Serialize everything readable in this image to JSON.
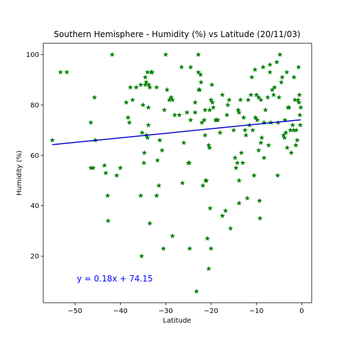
{
  "chart_data": {
    "type": "scatter",
    "title": "Southern Hemisphere - Humidity (%) vs Latitude (20/11/03)",
    "xlabel": "Latitude",
    "ylabel": "Humidity (%)",
    "xlim": [
      -57,
      2.2
    ],
    "ylim": [
      1.5,
      104.5
    ],
    "xticks": [
      -50,
      -40,
      -30,
      -20,
      -10,
      0
    ],
    "yticks": [
      20,
      40,
      60,
      80,
      100
    ],
    "grid": false,
    "marker": "star",
    "marker_color": "#008000",
    "regression": {
      "equation": "y = 0.18x + 74.15",
      "slope": 0.18,
      "intercept": 74.15,
      "x_range": [
        -55,
        -0.2
      ],
      "color": "#0000cc",
      "label_color": "#0000ff"
    },
    "points": [
      [
        -55,
        66
      ],
      [
        -53.2,
        93
      ],
      [
        -51.8,
        93
      ],
      [
        -46.5,
        73
      ],
      [
        -46.5,
        55
      ],
      [
        -46,
        55
      ],
      [
        -45.7,
        83
      ],
      [
        -45.5,
        66
      ],
      [
        -43.5,
        56
      ],
      [
        -43.2,
        53
      ],
      [
        -42.8,
        44
      ],
      [
        -42.7,
        34
      ],
      [
        -41.8,
        100
      ],
      [
        -40.8,
        52
      ],
      [
        -40,
        55
      ],
      [
        -38.7,
        81
      ],
      [
        -38.3,
        75
      ],
      [
        -38,
        73
      ],
      [
        -37.8,
        87
      ],
      [
        -37.3,
        82
      ],
      [
        -36.5,
        87
      ],
      [
        -35.5,
        88
      ],
      [
        -35.5,
        44
      ],
      [
        -35.3,
        20
      ],
      [
        -35.2,
        69
      ],
      [
        -35,
        80
      ],
      [
        -34.8,
        57
      ],
      [
        -34.7,
        61
      ],
      [
        -34.5,
        91
      ],
      [
        -34.5,
        88
      ],
      [
        -34.3,
        89
      ],
      [
        -34.2,
        68
      ],
      [
        -34,
        93
      ],
      [
        -34,
        67
      ],
      [
        -33.8,
        72
      ],
      [
        -33.8,
        79
      ],
      [
        -33.7,
        88
      ],
      [
        -33.5,
        87
      ],
      [
        -33.5,
        33
      ],
      [
        -33.2,
        93
      ],
      [
        -33,
        93
      ],
      [
        -32,
        87
      ],
      [
        -32,
        44
      ],
      [
        -31.8,
        58
      ],
      [
        -31.5,
        48
      ],
      [
        -31.3,
        66
      ],
      [
        -30.8,
        62
      ],
      [
        -30.5,
        23
      ],
      [
        -30.3,
        78
      ],
      [
        -30,
        100
      ],
      [
        -29.7,
        86
      ],
      [
        -29.2,
        82
      ],
      [
        -28.8,
        83
      ],
      [
        -28.5,
        82
      ],
      [
        -28.5,
        28
      ],
      [
        -28,
        76
      ],
      [
        -27,
        76
      ],
      [
        -26.5,
        95
      ],
      [
        -26.3,
        49
      ],
      [
        -26,
        65
      ],
      [
        -25.3,
        77
      ],
      [
        -25,
        57
      ],
      [
        -24.8,
        57
      ],
      [
        -24.7,
        23
      ],
      [
        -24.5,
        95
      ],
      [
        -24.5,
        74
      ],
      [
        -23.5,
        81
      ],
      [
        -23.5,
        77
      ],
      [
        -23.2,
        6
      ],
      [
        -22.8,
        100
      ],
      [
        -22.8,
        93
      ],
      [
        -22.7,
        86
      ],
      [
        -22.5,
        86
      ],
      [
        -22.3,
        92
      ],
      [
        -22.2,
        89
      ],
      [
        -22,
        73
      ],
      [
        -21.8,
        48
      ],
      [
        -21.5,
        74
      ],
      [
        -21.3,
        68
      ],
      [
        -21.3,
        78
      ],
      [
        -21.2,
        50
      ],
      [
        -21,
        50
      ],
      [
        -20.8,
        27
      ],
      [
        -20.5,
        15
      ],
      [
        -20.5,
        64
      ],
      [
        -20.3,
        63
      ],
      [
        -20.3,
        78
      ],
      [
        -20.2,
        39
      ],
      [
        -20,
        82
      ],
      [
        -20,
        23
      ],
      [
        -19.8,
        88
      ],
      [
        -19.7,
        81
      ],
      [
        -19.5,
        79
      ],
      [
        -19,
        74
      ],
      [
        -18.8,
        74
      ],
      [
        -18.5,
        74
      ],
      [
        -18,
        69
      ],
      [
        -17.5,
        84
      ],
      [
        -17.5,
        36
      ],
      [
        -16.8,
        38
      ],
      [
        -16.5,
        76
      ],
      [
        -16.3,
        80
      ],
      [
        -16,
        82
      ],
      [
        -15.7,
        31
      ],
      [
        -15,
        70
      ],
      [
        -14.7,
        59
      ],
      [
        -14.5,
        55
      ],
      [
        -14.2,
        57
      ],
      [
        -14,
        78
      ],
      [
        -13.8,
        77
      ],
      [
        -13.8,
        41
      ],
      [
        -13.8,
        50
      ],
      [
        -13.5,
        82
      ],
      [
        -13.3,
        61
      ],
      [
        -13,
        57
      ],
      [
        -12.8,
        75
      ],
      [
        -12.5,
        70
      ],
      [
        -12.3,
        68
      ],
      [
        -12,
        43
      ],
      [
        -11.8,
        82
      ],
      [
        -11.5,
        72
      ],
      [
        -11.2,
        84
      ],
      [
        -11,
        91
      ],
      [
        -10.8,
        70
      ],
      [
        -10.5,
        52
      ],
      [
        -10.3,
        94
      ],
      [
        -10.2,
        75
      ],
      [
        -10,
        84
      ],
      [
        -9.8,
        74
      ],
      [
        -9.5,
        62
      ],
      [
        -9.5,
        83
      ],
      [
        -9.3,
        42
      ],
      [
        -9.2,
        35
      ],
      [
        -9,
        82
      ],
      [
        -9,
        65
      ],
      [
        -8.8,
        67
      ],
      [
        -8.5,
        95
      ],
      [
        -8.3,
        73
      ],
      [
        -8.3,
        59
      ],
      [
        -8,
        78
      ],
      [
        -7.5,
        83
      ],
      [
        -7.3,
        64
      ],
      [
        -7,
        93
      ],
      [
        -7,
        96
      ],
      [
        -6.8,
        73
      ],
      [
        -6.5,
        86
      ],
      [
        -6.2,
        84
      ],
      [
        -6,
        87
      ],
      [
        -5.5,
        97
      ],
      [
        -5.3,
        52
      ],
      [
        -5.2,
        73
      ],
      [
        -5,
        83
      ],
      [
        -4.8,
        100
      ],
      [
        -4.5,
        89
      ],
      [
        -4.3,
        91
      ],
      [
        -4,
        68
      ],
      [
        -3.8,
        67
      ],
      [
        -3.7,
        74
      ],
      [
        -3.5,
        69
      ],
      [
        -3.3,
        93
      ],
      [
        -3.2,
        63
      ],
      [
        -3,
        79
      ],
      [
        -2.8,
        79
      ],
      [
        -2.5,
        70
      ],
      [
        -2.3,
        61
      ],
      [
        -2,
        72
      ],
      [
        -1.8,
        70
      ],
      [
        -1.7,
        91
      ],
      [
        -1.5,
        82
      ],
      [
        -1.3,
        64
      ],
      [
        -1.2,
        70
      ],
      [
        -1,
        66
      ],
      [
        -0.8,
        82
      ],
      [
        -0.7,
        95
      ],
      [
        -0.6,
        81
      ],
      [
        -0.5,
        84
      ],
      [
        -0.4,
        76
      ],
      [
        -0.3,
        72
      ],
      [
        -0.2,
        79
      ]
    ]
  }
}
